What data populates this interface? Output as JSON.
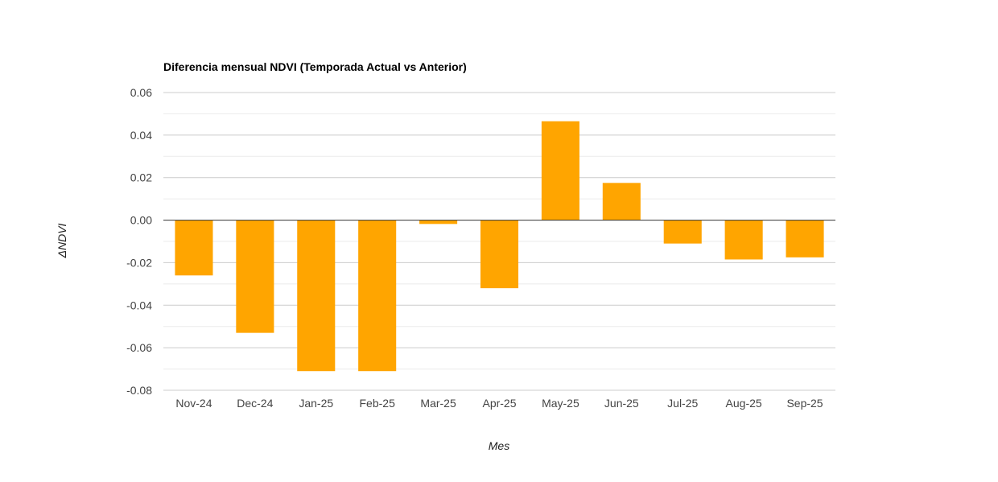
{
  "chart_data": {
    "type": "bar",
    "title": "Diferencia mensual NDVI (Temporada Actual vs Anterior)",
    "xlabel": "Mes",
    "ylabel": "ΔNDVI",
    "categories": [
      "Nov-24",
      "Dec-24",
      "Jan-25",
      "Feb-25",
      "Mar-25",
      "Apr-25",
      "May-25",
      "Jun-25",
      "Jul-25",
      "Aug-25",
      "Sep-25"
    ],
    "values": [
      -0.026,
      -0.053,
      -0.071,
      -0.071,
      -0.0018,
      -0.032,
      0.0465,
      0.0175,
      -0.011,
      -0.0185,
      -0.0175
    ],
    "ylim": [
      -0.08,
      0.06
    ],
    "yticks": [
      "0.06",
      "0.04",
      "0.02",
      "0.00",
      "-0.02",
      "-0.04",
      "-0.06",
      "-0.08"
    ],
    "grid": true,
    "legend": "none",
    "bar_color": "#FFA500"
  }
}
